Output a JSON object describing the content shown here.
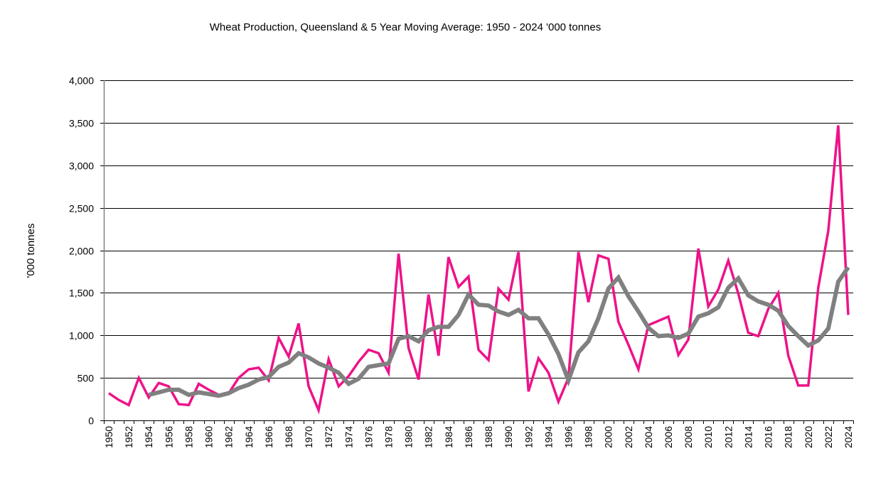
{
  "chart_data": {
    "type": "line",
    "title": "Wheat  Production, Queensland & 5 Year Moving Average: 1950 - 2024 '000 tonnes",
    "xlabel": "",
    "ylabel": "'000 tonnes",
    "ylim": [
      0,
      4000
    ],
    "yticks": [
      0,
      500,
      1000,
      1500,
      2000,
      2500,
      3000,
      3500,
      4000
    ],
    "ytick_labels": [
      "0",
      "500",
      "1,000",
      "1,500",
      "2,000",
      "2,500",
      "3,000",
      "3,500",
      "4,000"
    ],
    "x_start": 1950,
    "x_end": 2024,
    "xtick_step": 2,
    "grid": "horizontal",
    "legend": "none",
    "series": [
      {
        "name": "Wheat Production",
        "color": "#ee1289",
        "values": [
          320,
          240,
          180,
          500,
          270,
          440,
          400,
          190,
          180,
          430,
          360,
          300,
          320,
          500,
          600,
          620,
          470,
          970,
          750,
          1140,
          400,
          120,
          720,
          400,
          520,
          690,
          830,
          790,
          560,
          1960,
          850,
          480,
          1480,
          760,
          1920,
          1570,
          1690,
          830,
          710,
          1550,
          1420,
          1980,
          340,
          730,
          560,
          220,
          500,
          1980,
          1390,
          1940,
          1900,
          1160,
          890,
          600,
          1120,
          1170,
          1220,
          770,
          950,
          2020,
          1340,
          1540,
          1880,
          1490,
          1030,
          990,
          1310,
          1500,
          760,
          410,
          410,
          1560,
          2230,
          3470,
          1240
        ]
      },
      {
        "name": "5 Year Moving Average",
        "color": "#808080",
        "values": [
          null,
          null,
          null,
          null,
          300,
          330,
          360,
          360,
          300,
          330,
          310,
          290,
          320,
          380,
          420,
          480,
          510,
          630,
          680,
          790,
          740,
          670,
          620,
          560,
          430,
          490,
          630,
          650,
          670,
          960,
          990,
          930,
          1060,
          1100,
          1100,
          1240,
          1480,
          1360,
          1350,
          1280,
          1240,
          1300,
          1200,
          1200,
          1010,
          780,
          470,
          800,
          930,
          1200,
          1550,
          1680,
          1460,
          1280,
          1090,
          990,
          1000,
          970,
          1020,
          1220,
          1260,
          1330,
          1560,
          1670,
          1470,
          1400,
          1360,
          1290,
          1110,
          990,
          880,
          940,
          1080,
          1630,
          1800
        ]
      }
    ]
  }
}
